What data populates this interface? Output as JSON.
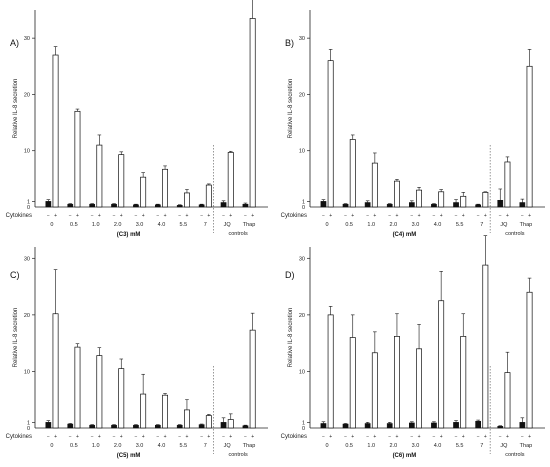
{
  "chart_data": [
    {
      "type": "bar",
      "panel_label": "A)",
      "xlabel": "(C3) mM",
      "ylabel": "Relative IL-8 secretion",
      "ylim": [
        0,
        35
      ],
      "yticks": [
        1,
        10,
        20,
        30
      ],
      "row_label": "Cytokines",
      "sign_labels": [
        "−",
        "+"
      ],
      "categories": [
        "0",
        "0.5",
        "1.0",
        "2.0",
        "3.0",
        "4.0",
        "5.5",
        "7",
        "JQ",
        "Thap"
      ],
      "group_label": "controls",
      "series": [
        {
          "values": [
            1.0,
            0.5,
            0.5,
            0.5,
            0.4,
            0.4,
            0.3,
            0.4,
            0.8,
            0.5
          ],
          "errors": [
            0.3,
            0.1,
            0.1,
            0.1,
            0.1,
            0.1,
            0.1,
            0.1,
            0.3,
            0.2
          ]
        },
        {
          "values": [
            27.0,
            17.0,
            11.0,
            9.3,
            5.3,
            6.7,
            2.5,
            3.9,
            9.7,
            33.5
          ],
          "errors": [
            1.5,
            0.4,
            1.8,
            0.5,
            0.8,
            0.6,
            0.6,
            0.2,
            0.2,
            3.5
          ]
        }
      ]
    },
    {
      "type": "bar",
      "panel_label": "B)",
      "xlabel": "(C4) mM",
      "ylabel": "Relative IL-8 secretion",
      "ylim": [
        0,
        35
      ],
      "yticks": [
        1,
        10,
        20,
        30
      ],
      "row_label": "Cytokines",
      "sign_labels": [
        "−",
        "+"
      ],
      "categories": [
        "0",
        "0.5",
        "1.0",
        "2.0",
        "3.0",
        "4.0",
        "5.5",
        "7",
        "JQ",
        "Thap"
      ],
      "group_label": "controls",
      "series": [
        {
          "values": [
            1.0,
            0.5,
            0.8,
            0.5,
            0.8,
            0.5,
            0.8,
            0.4,
            1.2,
            0.8
          ],
          "errors": [
            0.3,
            0.1,
            0.3,
            0.1,
            0.3,
            0.1,
            0.5,
            0.1,
            2.0,
            0.6
          ]
        },
        {
          "values": [
            26.0,
            12.0,
            7.8,
            4.6,
            3.0,
            2.7,
            1.9,
            2.6,
            8.0,
            25.0
          ],
          "errors": [
            2.0,
            0.8,
            1.8,
            0.3,
            0.5,
            0.4,
            0.7,
            0.1,
            0.9,
            3.0
          ]
        }
      ]
    },
    {
      "type": "bar",
      "panel_label": "C)",
      "xlabel": "(C5) mM",
      "ylabel": "Relative IL-8 secretion",
      "ylim": [
        0,
        32
      ],
      "yticks": [
        1,
        10,
        20,
        30
      ],
      "row_label": "Cytokines",
      "sign_labels": [
        "−",
        "+"
      ],
      "categories": [
        "0",
        "0.5",
        "1.0",
        "2.0",
        "3.0",
        "4.0",
        "5.5",
        "7",
        "JQ",
        "Thap"
      ],
      "group_label": "controls",
      "series": [
        {
          "values": [
            1.0,
            0.7,
            0.5,
            0.5,
            0.5,
            0.5,
            0.5,
            0.6,
            1.0,
            0.4
          ],
          "errors": [
            0.3,
            0.1,
            0.1,
            0.1,
            0.1,
            0.1,
            0.1,
            0.1,
            0.8,
            0.1
          ]
        },
        {
          "values": [
            20.2,
            14.3,
            12.8,
            10.5,
            6.0,
            5.8,
            3.2,
            2.2,
            1.5,
            17.3
          ],
          "errors": [
            7.8,
            0.6,
            1.4,
            1.7,
            3.5,
            0.3,
            1.8,
            0.2,
            1.0,
            3.0
          ]
        }
      ]
    },
    {
      "type": "bar",
      "panel_label": "D)",
      "xlabel": "(C6) mM",
      "ylabel": "Relative IL-8 secretion",
      "ylim": [
        0,
        32
      ],
      "yticks": [
        1,
        10,
        20,
        30
      ],
      "row_label": "Cytokines",
      "sign_labels": [
        "−",
        "+"
      ],
      "categories": [
        "0",
        "0.5",
        "1.0",
        "2.0",
        "3.0",
        "4.0",
        "5.5",
        "7",
        "JQ",
        "Thap"
      ],
      "group_label": "controls",
      "series": [
        {
          "values": [
            0.8,
            0.7,
            0.8,
            0.8,
            0.9,
            0.9,
            1.0,
            1.2,
            0.3,
            1.0
          ],
          "errors": [
            0.3,
            0.1,
            0.2,
            0.2,
            0.2,
            0.2,
            0.3,
            0.2,
            0.1,
            0.8
          ]
        },
        {
          "values": [
            20.0,
            16.0,
            13.3,
            16.2,
            14.0,
            22.5,
            16.2,
            28.8,
            9.8,
            24.0
          ],
          "errors": [
            1.5,
            4.0,
            3.7,
            4.0,
            4.3,
            5.2,
            4.0,
            5.2,
            3.6,
            2.5
          ]
        }
      ]
    }
  ]
}
